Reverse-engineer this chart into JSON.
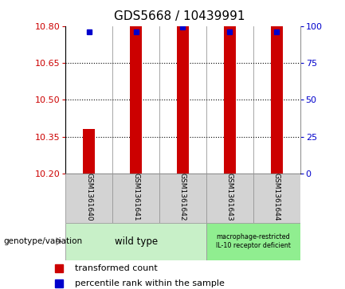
{
  "title": "GDS5668 / 10439991",
  "samples": [
    "GSM1361640",
    "GSM1361641",
    "GSM1361642",
    "GSM1361643",
    "GSM1361644"
  ],
  "red_bar_bottom": [
    10.2,
    10.2,
    10.2,
    10.2,
    10.2
  ],
  "red_bar_top": [
    10.38,
    10.8,
    10.8,
    10.8,
    10.8
  ],
  "blue_dot_y": [
    10.775,
    10.775,
    10.795,
    10.775,
    10.775
  ],
  "ylim": [
    10.2,
    10.8
  ],
  "yticks_left": [
    10.2,
    10.35,
    10.5,
    10.65,
    10.8
  ],
  "yticks_right": [
    0,
    25,
    50,
    75,
    100
  ],
  "bar_color": "#cc0000",
  "dot_color": "#0000cc",
  "bar_width": 0.25,
  "group1_label": "wild type",
  "group1_color": "#c8f0c8",
  "group1_indices": [
    0,
    1,
    2
  ],
  "group2_label": "macrophage-restricted\nIL-10 receptor deficient",
  "group2_color": "#90ee90",
  "group2_indices": [
    3,
    4
  ],
  "group_row_label": "genotype/variation",
  "legend_red": "transformed count",
  "legend_blue": "percentile rank within the sample",
  "title_fontsize": 11,
  "tick_fontsize": 8,
  "sample_fontsize": 6.5,
  "legend_fontsize": 8
}
